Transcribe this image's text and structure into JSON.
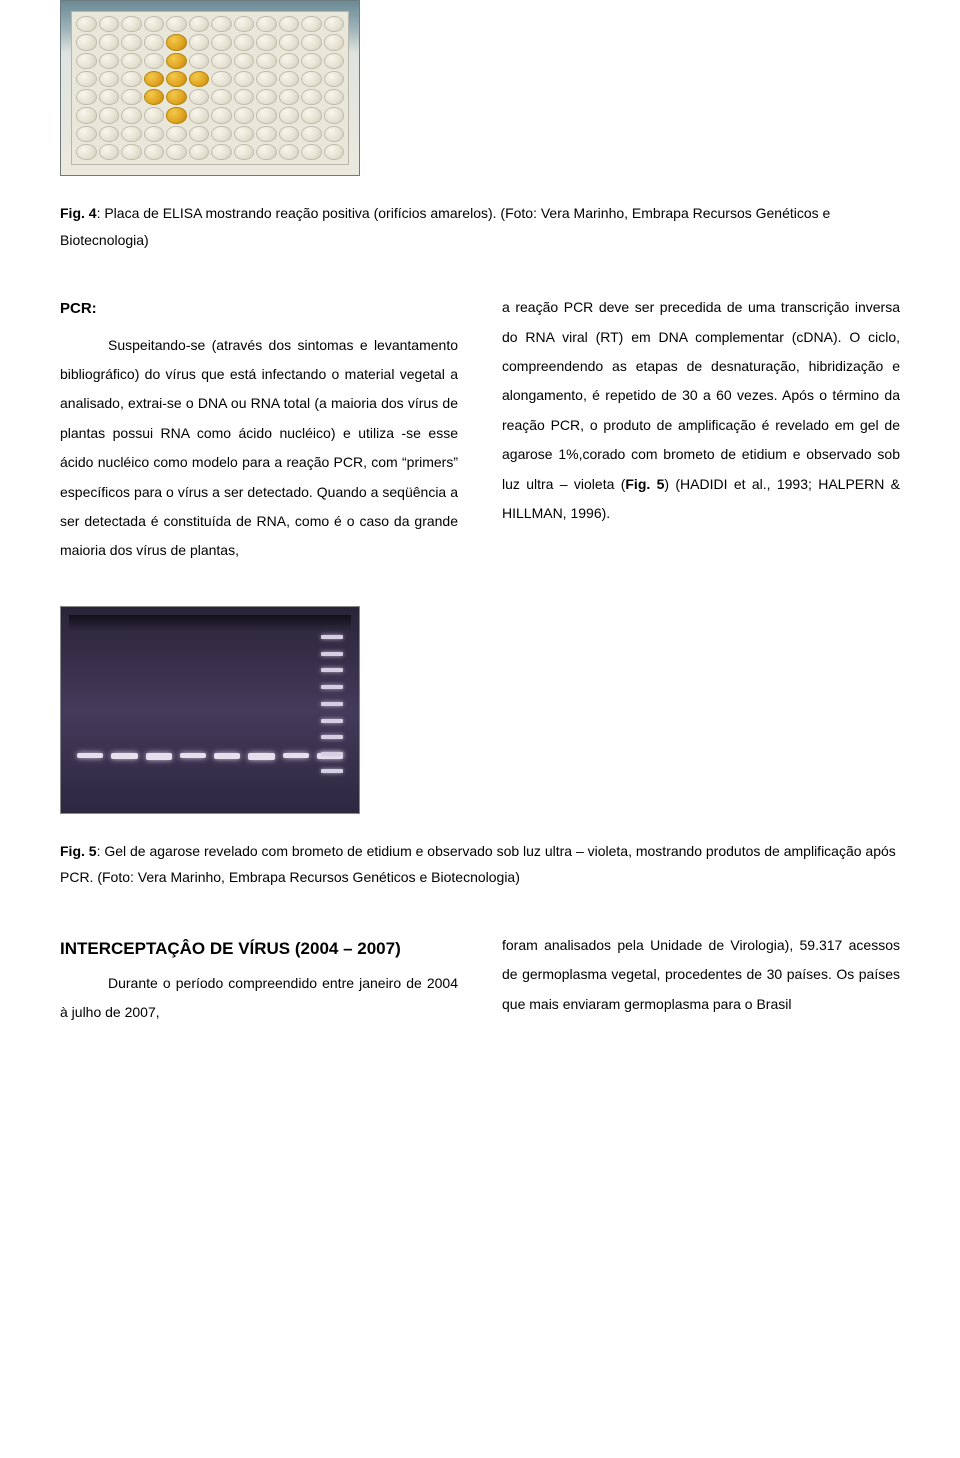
{
  "fig4": {
    "label": "Fig. 4",
    "caption_rest": ": Placa de ELISA mostrando reação positiva (orifícios amarelos). (Foto: Vera Marinho, Embrapa Recursos Genéticos e Biotecnologia)",
    "plate": {
      "rows": 8,
      "cols": 12,
      "positive_wells": [
        [
          1,
          4
        ],
        [
          2,
          4
        ],
        [
          3,
          4
        ],
        [
          4,
          4
        ],
        [
          5,
          4
        ],
        [
          3,
          3
        ],
        [
          4,
          3
        ],
        [
          3,
          5
        ]
      ],
      "well_color": "#e5e1d1",
      "positive_color": "#e0a321",
      "background_gradient": [
        "#6a8a95",
        "#ece9df"
      ]
    }
  },
  "pcr": {
    "heading": "PCR:",
    "left_p1": "Suspeitando-se (através dos sintomas e levantamento bibliográfico) do vírus que está infectando o material vegetal a analisado, extrai-se o DNA ou RNA total (a maioria dos vírus de plantas possui RNA como ácido nucléico) e utiliza -se esse ácido nucléico como modelo para a reação PCR, com “primers” específicos para o vírus a ser detectado. Quando a seqüência a ser detectada é constituída de RNA, como é o caso da grande maioria dos vírus de plantas,",
    "right_p1_a": "a reação PCR deve ser precedida de uma transcrição inversa do RNA viral (RT) em DNA complementar (cDNA). O ciclo, compreendendo as etapas de desnaturação, hibridização e alongamento, é repetido de 30 a 60 vezes. Após o término da reação PCR, o produto de amplificação é revelado em gel de agarose 1%,corado com brometo de etidium e observado sob luz ultra – violeta (",
    "right_fig_ref": "Fig. 5",
    "right_p1_b": ") (HADIDI et al., 1993; HALPERN & HILLMAN, 1996)."
  },
  "gel": {
    "background_gradient": [
      "#2a2438",
      "#443a5a",
      "#2d2740"
    ],
    "band_color": "#e6e0ee",
    "band_row_top_percent": 71,
    "lane_count": 8,
    "ladder_bands": 9
  },
  "fig5": {
    "label": "Fig. 5",
    "caption_rest": ": Gel de agarose revelado com brometo de etidium e observado sob luz ultra – violeta, mostrando produtos de amplificação após PCR. (Foto: Vera Marinho, Embrapa Recursos Genéticos e Biotecnologia)"
  },
  "intercept": {
    "heading": "INTERCEPTAÇÂO DE VÍRUS (2004 – 2007)",
    "left_p": "Durante o período compreendido entre janeiro de 2004 à julho de 2007,",
    "right_p": "foram analisados pela Unidade de Virologia), 59.317 acessos de germoplasma vegetal, procedentes de 30 países. Os países que mais enviaram germoplasma para o Brasil"
  },
  "colors": {
    "text": "#000000",
    "background": "#ffffff"
  },
  "typography": {
    "body_font": "Verdana",
    "body_size_pt": 10.5,
    "heading_font": "Arial",
    "heading_size_pt": 13
  }
}
